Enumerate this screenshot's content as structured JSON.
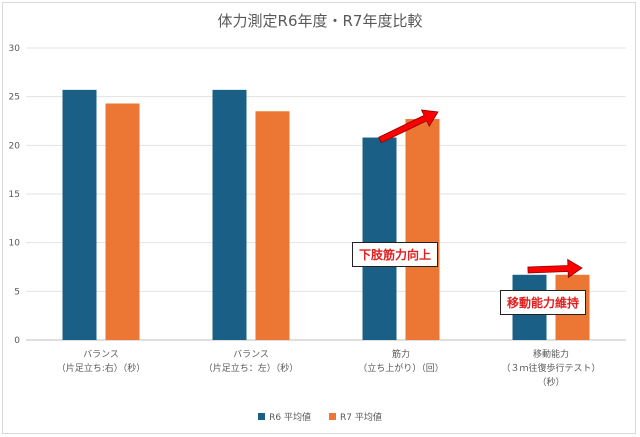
{
  "chart_data": {
    "type": "bar",
    "title": "体力測定R6年度・R7年度比較",
    "categories": [
      [
        "バランス",
        "（片足立ち:右）（秒）"
      ],
      [
        "バランス",
        "（片足立ち：左）（秒）"
      ],
      [
        "筋力",
        "（立ち上がり）（回）"
      ],
      [
        "移動能力",
        "（３ｍ往復歩行テスト）",
        "（秒）"
      ]
    ],
    "series": [
      {
        "name": "R6 平均値",
        "color": "#1a5f86",
        "values": [
          25.7,
          25.7,
          20.8,
          6.7
        ]
      },
      {
        "name": "R7 平均値",
        "color": "#ec7633",
        "values": [
          24.3,
          23.5,
          22.7,
          6.7
        ]
      }
    ],
    "ylim": [
      0,
      30
    ],
    "yticks": [
      0,
      5,
      10,
      15,
      20,
      25,
      30
    ],
    "grid": true,
    "legend_position": "bottom",
    "annotations": [
      {
        "text": "下肢筋力向上",
        "category": 2
      },
      {
        "text": "移動動能力維持",
        "category": 3
      }
    ]
  },
  "callouts": {
    "leg": "下肢筋力向上",
    "mob": "移動能力維持"
  },
  "colors": {
    "arrow": "#ff0000"
  }
}
